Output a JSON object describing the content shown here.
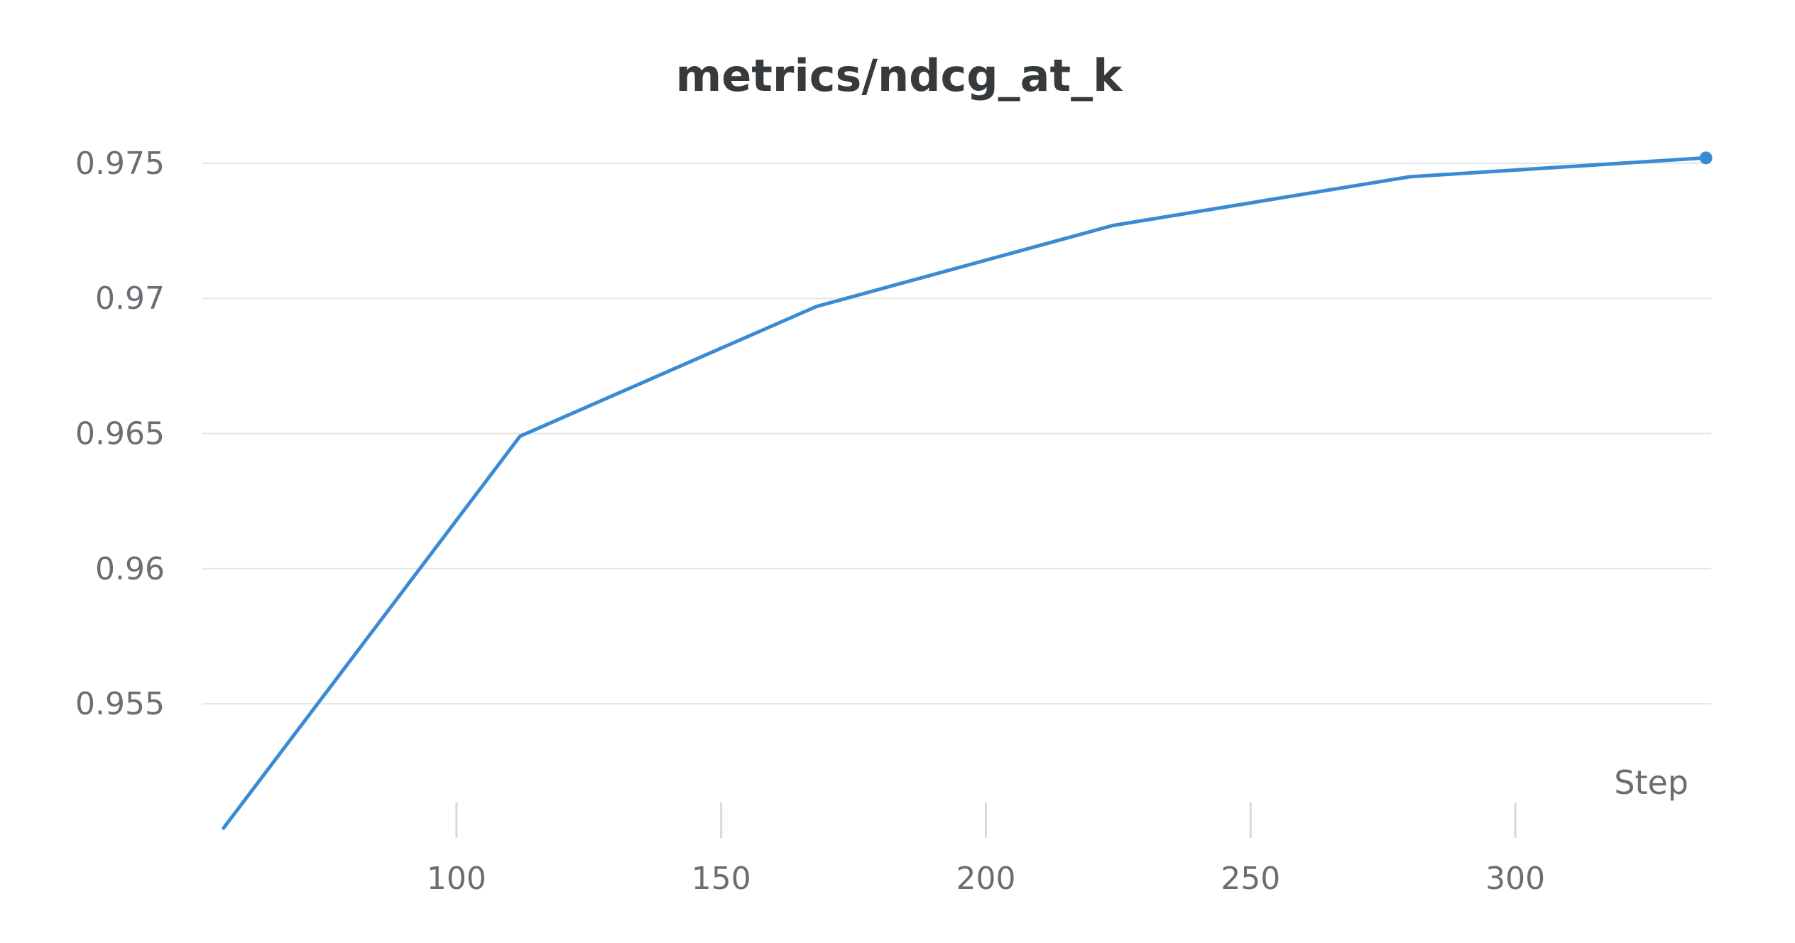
{
  "chart_data": {
    "type": "line",
    "title": "metrics/ndcg_at_k",
    "xlabel": "Step",
    "ylabel": "",
    "xlim": [
      52,
      337
    ],
    "ylim": [
      0.9503,
      0.9771
    ],
    "x_ticks": [
      100,
      150,
      200,
      250,
      300
    ],
    "y_ticks": [
      0.955,
      0.96,
      0.965,
      0.97,
      0.975
    ],
    "y_tick_labels": [
      "0.955",
      "0.96",
      "0.965",
      "0.97",
      "0.975"
    ],
    "grid": true,
    "legend": "none",
    "series": [
      {
        "color": "#3a8bd4",
        "x": [
          56,
          112,
          168,
          224,
          280,
          336
        ],
        "y": [
          0.9504,
          0.9649,
          0.9697,
          0.9727,
          0.9745,
          0.9752
        ],
        "end_marker": true
      }
    ]
  }
}
